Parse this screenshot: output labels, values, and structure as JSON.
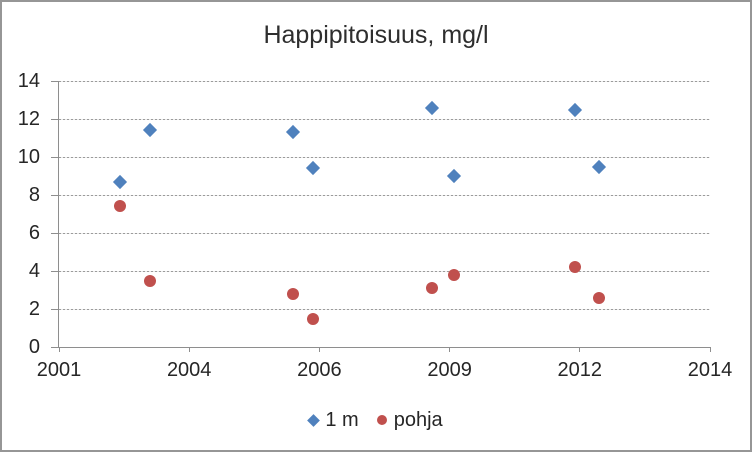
{
  "chart_data": {
    "type": "scatter",
    "title": "Happipitoisuus, mg/l",
    "xlabel": "",
    "ylabel": "",
    "ylim": [
      0,
      14
    ],
    "y_ticks": [
      0,
      2,
      4,
      6,
      8,
      10,
      12,
      14
    ],
    "x_tick_labels": [
      "2001",
      "2004",
      "2006",
      "2009",
      "2012",
      "2014"
    ],
    "x_tick_values": [
      2001,
      2004,
      2006,
      2009,
      2012,
      2014
    ],
    "grid": "horizontal-dashed",
    "legend_position": "bottom-center",
    "series": [
      {
        "name": "1 m",
        "marker": "diamond",
        "color": "#4F81BD",
        "x": [
          2002.4,
          2003.1,
          2005.6,
          2005.9,
          2008.6,
          2009.1,
          2011.9,
          2012.3
        ],
        "y": [
          8.7,
          11.4,
          11.3,
          9.4,
          12.6,
          9.0,
          12.5,
          9.5
        ]
      },
      {
        "name": "pohja",
        "marker": "circle",
        "color": "#C0504D",
        "x": [
          2002.4,
          2003.1,
          2005.6,
          2005.9,
          2008.6,
          2009.1,
          2011.9,
          2012.3
        ],
        "y": [
          7.4,
          3.5,
          2.8,
          1.5,
          3.1,
          3.8,
          4.2,
          2.6
        ]
      }
    ]
  },
  "colors": {
    "frame_border": "#969696",
    "axis_line": "#8e8e8e",
    "gridline": "#c9c9c9",
    "text": "#262626",
    "series_1m": "#4F81BD",
    "series_pohja": "#C0504D"
  }
}
